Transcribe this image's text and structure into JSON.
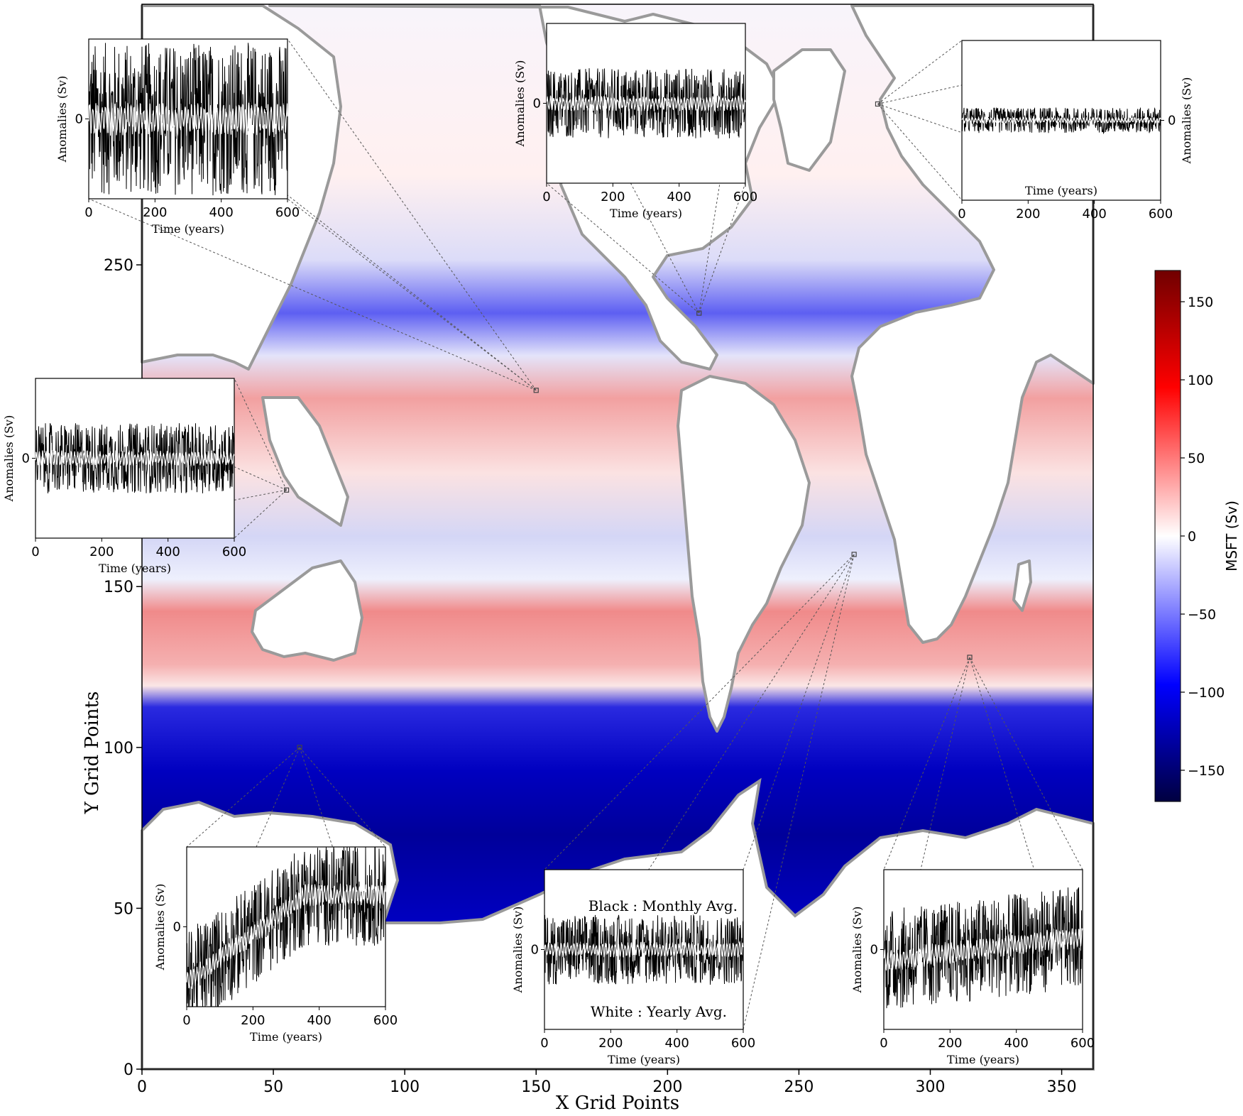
{
  "map": {
    "xlabel": "X Grid Points",
    "ylabel": "Y Grid Points",
    "xticks": [
      0,
      50,
      100,
      150,
      200,
      250,
      300,
      350
    ],
    "yticks": [
      0,
      50,
      100,
      150,
      250
    ],
    "xlim": [
      0,
      362
    ],
    "ylim": [
      0,
      331
    ],
    "colormap": "seismic"
  },
  "colorbar": {
    "label": "MSFT (Sv)",
    "ticks": [
      150,
      100,
      50,
      0,
      -50,
      -100,
      -150
    ],
    "range": [
      -170,
      170
    ]
  },
  "inset_common": {
    "ylabel": "Anomalies (Sv)",
    "xlabel": "Time (years)",
    "xticks": [
      0,
      200,
      400,
      600
    ],
    "ytick": "0"
  },
  "annotations": {
    "legend_black": "Black : Monthly Avg.",
    "legend_white": "White : Yearly Avg."
  },
  "insets": [
    {
      "id": "north-pacific-1",
      "probe_grid": [
        150,
        211
      ],
      "trend": "flat",
      "amplitude": "very-high",
      "show_xlabel": true
    },
    {
      "id": "atlantic-gulf-stream",
      "probe_grid": [
        212,
        235
      ],
      "trend": "flat",
      "amplitude": "medium",
      "show_xlabel": true
    },
    {
      "id": "north-atlantic-subpolar",
      "probe_grid": [
        280,
        300
      ],
      "trend": "flat",
      "amplitude": "low",
      "show_xlabel": true
    },
    {
      "id": "west-pacific",
      "probe_grid": [
        55,
        180
      ],
      "trend": "flat",
      "amplitude": "medium",
      "show_xlabel": true
    },
    {
      "id": "southern-ocean-indian",
      "probe_grid": [
        60,
        100
      ],
      "trend": "increasing",
      "amplitude": "high",
      "show_xlabel": true
    },
    {
      "id": "south-atlantic",
      "probe_grid": [
        271,
        160
      ],
      "trend": "flat",
      "amplitude": "medium",
      "show_xlabel": true
    },
    {
      "id": "agulhas",
      "probe_grid": [
        315,
        128
      ],
      "trend": "slight-increase",
      "amplitude": "high",
      "show_xlabel": true
    }
  ],
  "colors": {
    "positive": "#ff0000",
    "negative": "#0000c0",
    "neutral": "#ffffff",
    "land_outline": "#9a9a9a",
    "series_monthly": "#000000",
    "series_yearly": "#ffffff"
  }
}
